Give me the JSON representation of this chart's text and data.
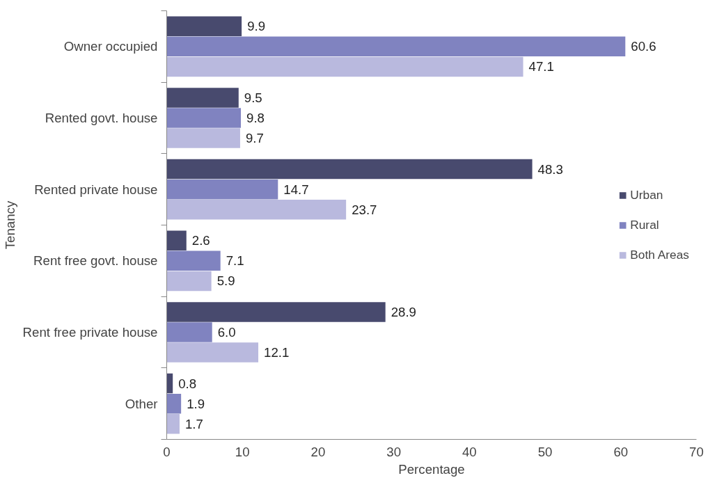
{
  "chart_data": {
    "type": "bar",
    "orientation": "horizontal",
    "xlabel": "Percentage",
    "ylabel": "Tenancy",
    "categories": [
      "Owner occupied",
      "Rented govt. house",
      "Rented private house",
      "Rent free govt. house",
      "Rent free private house",
      "Other"
    ],
    "series": [
      {
        "name": "Urban",
        "color": "#484a6e",
        "values": [
          9.9,
          9.5,
          48.3,
          2.6,
          28.9,
          0.8
        ]
      },
      {
        "name": "Rural",
        "color": "#8083c0",
        "values": [
          60.6,
          9.8,
          14.7,
          7.1,
          6.0,
          1.9
        ]
      },
      {
        "name": "Both Areas",
        "color": "#b9b9de",
        "values": [
          47.1,
          9.7,
          23.7,
          5.9,
          12.1,
          1.7
        ]
      }
    ],
    "value_labels": [
      [
        "9.9",
        "9.5",
        "48.3",
        "2.6",
        "28.9",
        "0.8"
      ],
      [
        "60.6",
        "9.8",
        "14.7",
        "7.1",
        "6.0",
        "1.9"
      ],
      [
        "47.1",
        "9.7",
        "23.7",
        "5.9",
        "12.1",
        "1.7"
      ]
    ],
    "xlim": [
      0,
      70
    ],
    "xticks": [
      0,
      10,
      20,
      30,
      40,
      50,
      60,
      70
    ],
    "grid": false,
    "legend": "right"
  }
}
